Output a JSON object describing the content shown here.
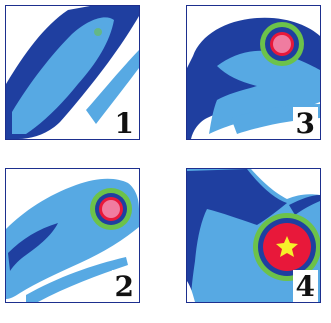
{
  "panels": [
    {
      "id": "p1",
      "label": "1"
    },
    {
      "id": "p3",
      "label": "3"
    },
    {
      "id": "p2",
      "label": "2"
    },
    {
      "id": "p4",
      "label": "4"
    }
  ],
  "colors": {
    "dark_blue": "#1f3fa0",
    "light_blue": "#57a9e3",
    "green": "#6cc24a",
    "red": "#e8183a",
    "pink": "#f07ca0",
    "yellow": "#f6f02a",
    "frame": "#1d2f8e"
  }
}
